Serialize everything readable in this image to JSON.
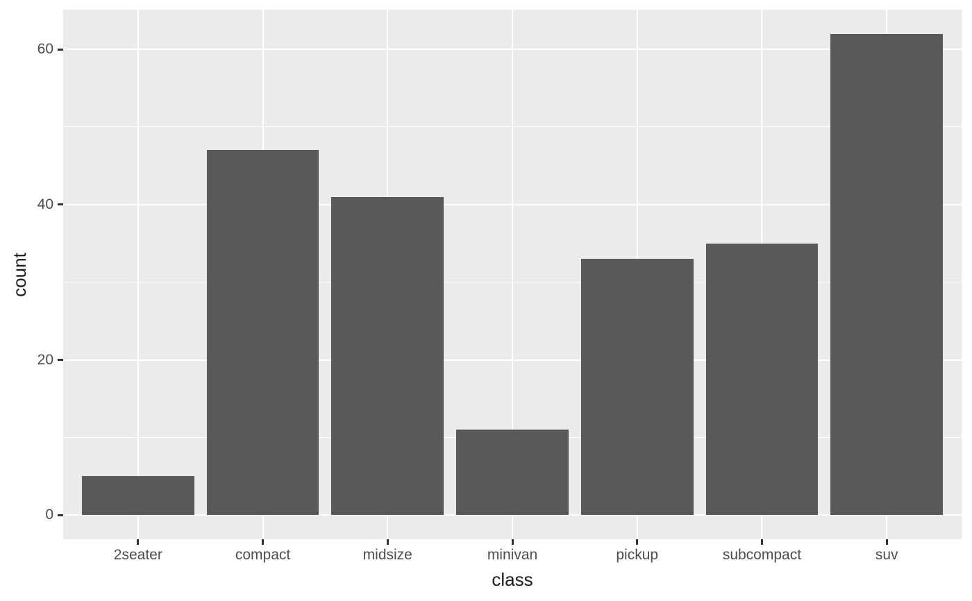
{
  "chart_data": {
    "type": "bar",
    "title": "",
    "xlabel": "class",
    "ylabel": "count",
    "categories": [
      "2seater",
      "compact",
      "midsize",
      "minivan",
      "pickup",
      "subcompact",
      "suv"
    ],
    "values": [
      5,
      47,
      41,
      11,
      33,
      35,
      62
    ],
    "ylim": [
      0,
      62
    ],
    "y_major_ticks": [
      0,
      20,
      40,
      60
    ],
    "y_minor_ticks": [
      10,
      30,
      50
    ],
    "grid": "major-and-minor-horizontal, major-vertical-at-categories",
    "legend_position": "none",
    "style": {
      "bar_fill": "#595959",
      "panel_background": "#EBEBEB",
      "gridline_color": "#FFFFFF",
      "axis_text_color": "#4D4D4D",
      "axis_title_color": "#1A1A1A",
      "tick_mark_color": "#333333",
      "figure_background": "#FFFFFF"
    }
  }
}
